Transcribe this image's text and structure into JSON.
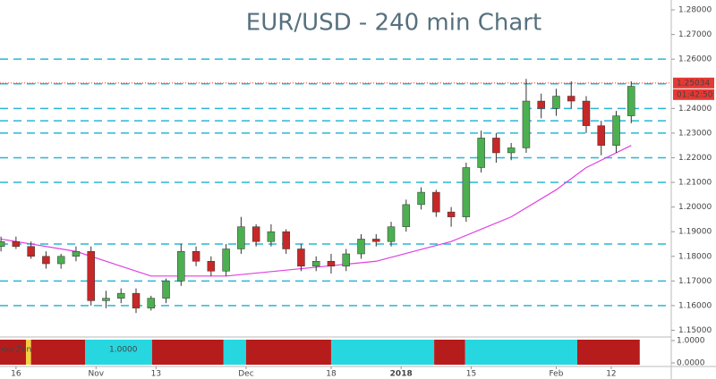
{
  "chart_data": {
    "type": "candlestick",
    "title": "EUR/USD - 240 min Chart",
    "x": [
      0,
      3,
      6,
      9,
      12,
      15,
      18,
      21,
      24,
      27,
      30,
      33,
      36,
      39,
      42,
      45,
      48,
      51,
      54,
      57,
      60,
      63,
      66,
      69,
      72,
      75,
      78,
      81,
      84,
      87,
      90,
      93,
      96,
      99,
      102,
      105,
      108,
      111,
      114,
      117,
      120,
      123,
      126
    ],
    "open": [
      1.184,
      1.186,
      1.184,
      1.18,
      1.177,
      1.18,
      1.182,
      1.162,
      1.163,
      1.165,
      1.159,
      1.163,
      1.17,
      1.182,
      1.178,
      1.174,
      1.183,
      1.192,
      1.186,
      1.19,
      1.183,
      1.176,
      1.178,
      1.176,
      1.181,
      1.187,
      1.186,
      1.192,
      1.201,
      1.206,
      1.198,
      1.196,
      1.216,
      1.228,
      1.222,
      1.224,
      1.243,
      1.24,
      1.245,
      1.243,
      1.233,
      1.225,
      1.237
    ],
    "high": [
      1.188,
      1.188,
      1.186,
      1.182,
      1.181,
      1.184,
      1.184,
      1.166,
      1.167,
      1.167,
      1.164,
      1.171,
      1.185,
      1.184,
      1.18,
      1.185,
      1.196,
      1.193,
      1.193,
      1.191,
      1.185,
      1.18,
      1.181,
      1.183,
      1.189,
      1.189,
      1.194,
      1.203,
      1.208,
      1.207,
      1.2,
      1.218,
      1.231,
      1.23,
      1.226,
      1.252,
      1.246,
      1.248,
      1.251,
      1.245,
      1.235,
      1.239,
      1.251
    ],
    "low": [
      1.182,
      1.183,
      1.179,
      1.175,
      1.175,
      1.178,
      1.16,
      1.159,
      1.161,
      1.157,
      1.158,
      1.161,
      1.168,
      1.176,
      1.172,
      1.172,
      1.181,
      1.184,
      1.184,
      1.181,
      1.174,
      1.174,
      1.173,
      1.174,
      1.179,
      1.184,
      1.184,
      1.19,
      1.199,
      1.196,
      1.192,
      1.194,
      1.214,
      1.218,
      1.219,
      1.222,
      1.236,
      1.237,
      1.24,
      1.23,
      1.221,
      1.222,
      1.234
    ],
    "close": [
      1.186,
      1.184,
      1.18,
      1.177,
      1.18,
      1.182,
      1.162,
      1.163,
      1.165,
      1.159,
      1.163,
      1.17,
      1.182,
      1.178,
      1.174,
      1.183,
      1.192,
      1.186,
      1.19,
      1.183,
      1.176,
      1.178,
      1.176,
      1.181,
      1.187,
      1.186,
      1.192,
      1.201,
      1.206,
      1.198,
      1.196,
      1.216,
      1.228,
      1.222,
      1.224,
      1.243,
      1.24,
      1.245,
      1.243,
      1.233,
      1.225,
      1.237,
      1.249
    ],
    "up_color": "#4caf50",
    "down_color": "#c62828",
    "ma": {
      "color": "#e040e0",
      "x": [
        0,
        15,
        30,
        45,
        60,
        75,
        90,
        102,
        111,
        117,
        126
      ],
      "values": [
        1.187,
        1.182,
        1.172,
        1.172,
        1.175,
        1.178,
        1.186,
        1.196,
        1.207,
        1.216,
        1.225
      ]
    },
    "levels": {
      "color": "#29b6d6",
      "values": [
        1.26,
        1.25,
        1.24,
        1.235,
        1.23,
        1.22,
        1.21,
        1.185,
        1.17,
        1.16
      ]
    },
    "last_price": {
      "value": 1.25034,
      "label": "1.25034",
      "time_label": "01:42:50",
      "color": "#e53935"
    },
    "xlim": [
      -0.2,
      134
    ],
    "ylim": [
      1.148,
      1.284
    ],
    "xticks": [
      {
        "value": 3,
        "label": "16"
      },
      {
        "value": 19,
        "label": "Nov"
      },
      {
        "value": 31,
        "label": "13"
      },
      {
        "value": 49,
        "label": "Dec"
      },
      {
        "value": 66,
        "label": "18"
      },
      {
        "value": 80,
        "label": "2018"
      },
      {
        "value": 94,
        "label": "15"
      },
      {
        "value": 111,
        "label": "Feb"
      },
      {
        "value": 122,
        "label": "12"
      }
    ],
    "yticks": [
      {
        "value": 1.28,
        "label": "1.28000"
      },
      {
        "value": 1.27,
        "label": "1.27000"
      },
      {
        "value": 1.26,
        "label": "1.26000"
      },
      {
        "value": 1.24,
        "label": "1.24000"
      },
      {
        "value": 1.23,
        "label": "1.23000"
      },
      {
        "value": 1.22,
        "label": "1.22000"
      },
      {
        "value": 1.21,
        "label": "1.21000"
      },
      {
        "value": 1.2,
        "label": "1.20000"
      },
      {
        "value": 1.19,
        "label": "1.19000"
      },
      {
        "value": 1.18,
        "label": "1.18000"
      },
      {
        "value": 1.17,
        "label": "1.17000"
      },
      {
        "value": 1.16,
        "label": "1.16000"
      },
      {
        "value": 1.15,
        "label": "1.15000"
      }
    ],
    "indicator": {
      "name": "hop Zon",
      "value_text": "1.0000",
      "yticks": [
        {
          "value": 1,
          "label": "1.0000"
        },
        {
          "value": 0,
          "label": "0.0000"
        }
      ],
      "segments": {
        "x": [
          -0.2,
          5,
          6,
          16.8,
          30.2,
          44.5,
          49,
          66,
          86.6,
          92.8,
          115.2,
          127.7
        ],
        "colors": [
          "#b71c1c",
          "#f4d03f",
          "#b71c1c",
          "#26d7e0",
          "#b71c1c",
          "#26d7e0",
          "#b71c1c",
          "#26d7e0",
          "#b71c1c",
          "#26d7e0",
          "#b71c1c"
        ]
      }
    }
  }
}
